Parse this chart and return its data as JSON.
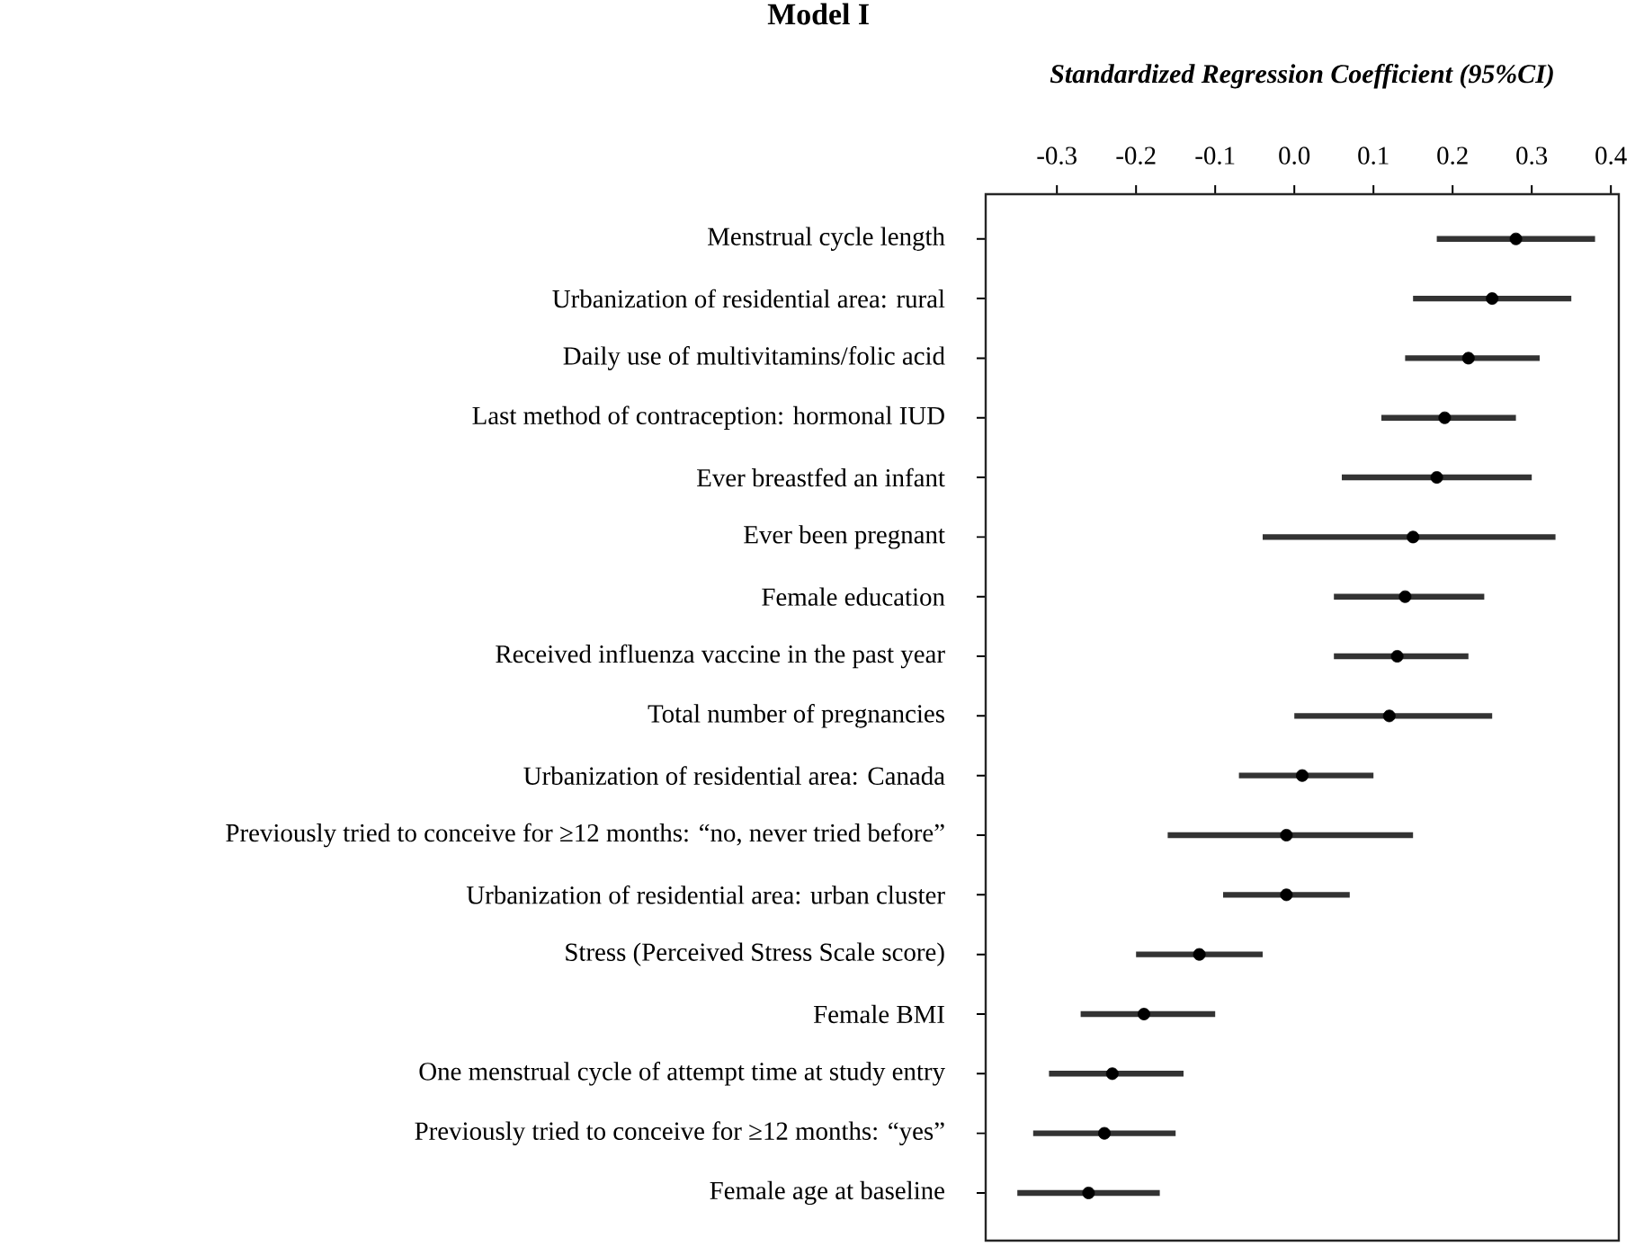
{
  "chart_data": {
    "type": "scatter",
    "title": "Model I",
    "xlabel": "Standardized Regression Coefficient (95%CI)",
    "orientation": "horizontal",
    "marker": "circle",
    "categories": [
      "Menstrual cycle length",
      "Urbanization of residential area: rural",
      "Daily use of multivitamins/folic acid",
      "Last method of contraception: hormonal IUD",
      "Ever breastfed an infant",
      "Ever been pregnant",
      "Female education",
      "Received influenza vaccine in the past year",
      "Total number of pregnancies",
      "Urbanization of residential area: Canada",
      "Previously tried to conceive for ≥12 months: “no, never tried before”",
      "Urbanization of residential area: urban cluster",
      "Stress (Perceived Stress Scale score)",
      "Female BMI",
      "One menstrual cycle of attempt time at study entry",
      "Previously tried to conceive for ≥12 months: “yes”",
      "Female age at baseline"
    ],
    "series": [
      {
        "color": "#000000",
        "values": [
          0.28,
          0.25,
          0.22,
          0.19,
          0.18,
          0.15,
          0.14,
          0.13,
          0.12,
          0.01,
          -0.01,
          -0.01,
          -0.12,
          -0.19,
          -0.23,
          -0.24,
          -0.26
        ],
        "errors": [
          [
            0.18,
            0.38
          ],
          [
            0.15,
            0.35
          ],
          [
            0.14,
            0.31
          ],
          [
            0.11,
            0.28
          ],
          [
            0.06,
            0.3
          ],
          [
            -0.04,
            0.33
          ],
          [
            0.05,
            0.24
          ],
          [
            0.05,
            0.22
          ],
          [
            0.0,
            0.25
          ],
          [
            -0.07,
            0.1
          ],
          [
            -0.16,
            0.15
          ],
          [
            -0.09,
            0.07
          ],
          [
            -0.2,
            -0.04
          ],
          [
            -0.27,
            -0.1
          ],
          [
            -0.31,
            -0.14
          ],
          [
            -0.33,
            -0.15
          ],
          [
            -0.35,
            -0.17
          ]
        ]
      }
    ],
    "xlim": [
      -0.39,
      0.41
    ],
    "xticks": [
      -0.3,
      -0.2,
      -0.1,
      {
        "value": 0,
        "label": "0.0"
      },
      0.1,
      0.2,
      0.3,
      0.4
    ]
  }
}
